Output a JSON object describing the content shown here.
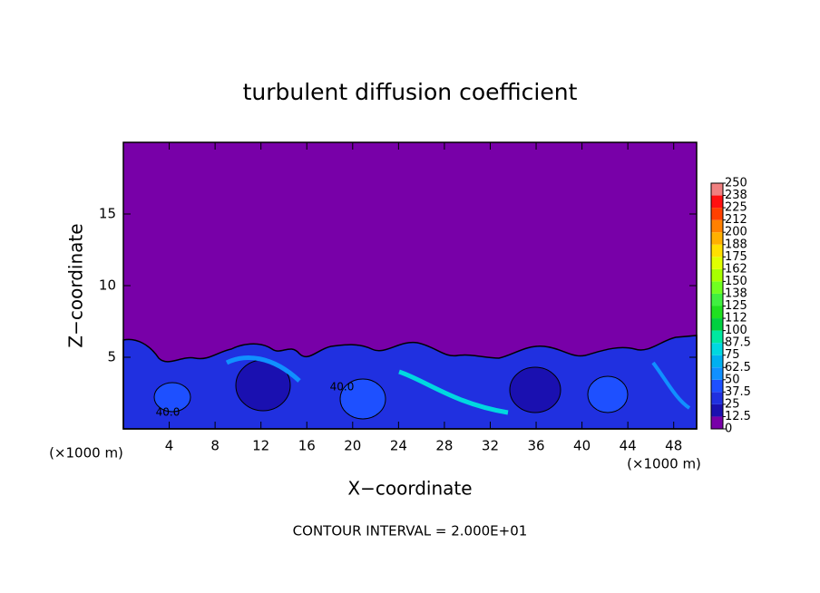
{
  "chart_data": {
    "type": "contour",
    "title": "turbulent diffusion coefficient",
    "xlabel": "X−coordinate",
    "ylabel": "Z−coordinate",
    "x_unit": "(×1000 m)",
    "y_unit": "(×1000 m)",
    "footnote": "CONTOUR INTERVAL = 2.000E+01",
    "contour_labels": [
      "40.0",
      "40.0"
    ],
    "xlim": [
      0,
      50
    ],
    "xticks": [
      4,
      8,
      12,
      16,
      20,
      24,
      28,
      32,
      36,
      40,
      44,
      48
    ],
    "ylim": [
      0,
      20
    ],
    "yticks": [
      5,
      10,
      15
    ],
    "colorbar_lim": [
      0,
      250
    ],
    "colorbar_ticks": [
      0,
      12.5,
      25,
      37.5,
      50,
      62.5,
      75,
      87.5,
      100,
      {
        "value": 112.5,
        "label": "112"
      },
      125,
      {
        "value": 137.5,
        "label": "138"
      },
      150,
      {
        "value": 162.5,
        "label": "162"
      },
      175,
      {
        "value": 187.5,
        "label": "188"
      },
      200,
      {
        "value": 212.5,
        "label": "212"
      },
      225,
      {
        "value": 237.5,
        "label": "238"
      },
      250
    ],
    "colorbar_colors": [
      "#7800a8",
      "#1a10b0",
      "#2030e0",
      "#1e50ff",
      "#1090ff",
      "#00b0f0",
      "#00d8e0",
      "#00e8a0",
      "#00d040",
      "#20e020",
      "#40f040",
      "#70ff20",
      "#a8ff00",
      "#e0ff00",
      "#ffe000",
      "#ffb000",
      "#ff8000",
      "#ff4000",
      "#ff1010",
      "#f08080"
    ]
  }
}
